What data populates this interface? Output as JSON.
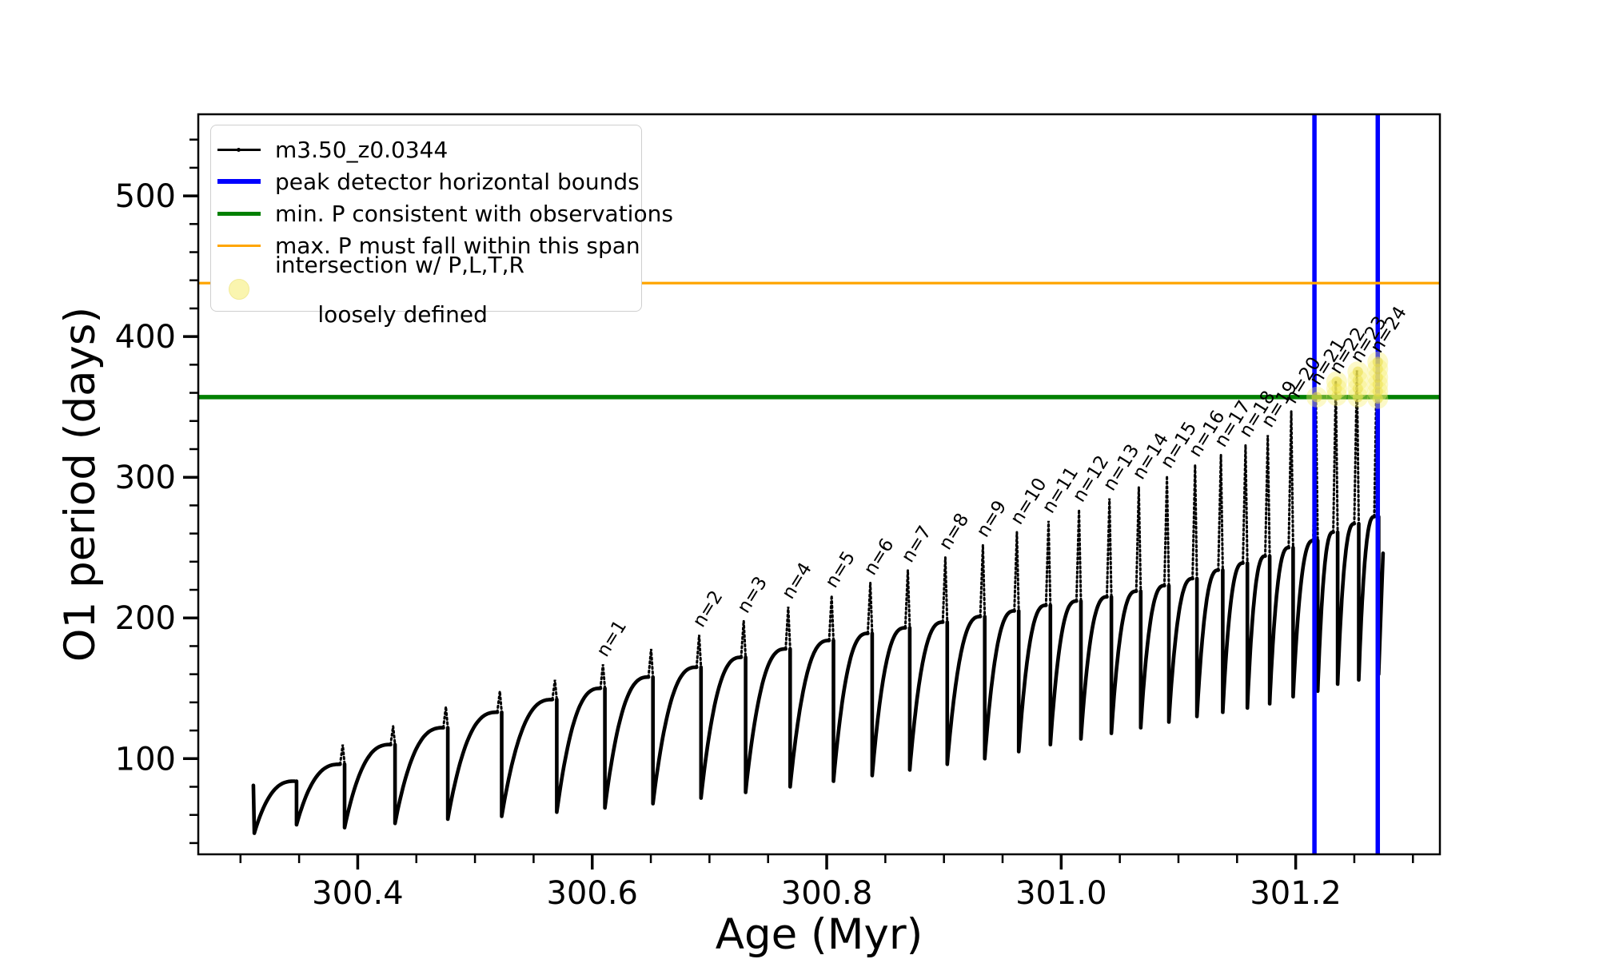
{
  "colors": {
    "series": "#000000",
    "blue": "#0000ff",
    "green": "#008000",
    "orange": "#ffa500",
    "marker_fill": "#f7ee6e",
    "marker_edge": "#e8da45"
  },
  "axes": {
    "x_label": "Age (Myr)",
    "y_label": "O1 period (days)",
    "xlim": [
      300.264,
      301.323
    ],
    "ylim": [
      32,
      558
    ],
    "x_ticks": [
      {
        "v": 300.4,
        "label": "300.4"
      },
      {
        "v": 300.6,
        "label": "300.6"
      },
      {
        "v": 300.8,
        "label": "300.8"
      },
      {
        "v": 301.0,
        "label": "301.0"
      },
      {
        "v": 301.2,
        "label": "301.2"
      }
    ],
    "y_ticks": [
      {
        "v": 100,
        "label": "100"
      },
      {
        "v": 200,
        "label": "200"
      },
      {
        "v": 300,
        "label": "300"
      },
      {
        "v": 400,
        "label": "400"
      },
      {
        "v": 500,
        "label": "500"
      }
    ],
    "x_minor_step": 0.05,
    "y_minor_step": 20
  },
  "legend": {
    "series_label": "m3.50_z0.0344",
    "blue_label": "peak detector horizontal bounds",
    "green_label": "min. P consistent with observations",
    "orange_label": "max. P must fall within this span",
    "intersection_line1": "intersection w/ P,L,T,R",
    "intersection_line2": "loosely defined"
  },
  "chart_data": {
    "type": "line",
    "title": "",
    "xlabel": "Age (Myr)",
    "ylabel": "O1 period (days)",
    "series_name": "m3.50_z0.0344",
    "xlim": [
      300.264,
      301.323
    ],
    "ylim": [
      32,
      558
    ],
    "start": {
      "age": 300.311,
      "value": 81,
      "drop_to": 47
    },
    "cycles": [
      {
        "end": 300.347,
        "shoulder": 84,
        "peak": 84,
        "min_after": 53
      },
      {
        "end": 300.388,
        "shoulder": 96,
        "peak": 110,
        "min_after": 51
      },
      {
        "end": 300.431,
        "shoulder": 110,
        "peak": 123,
        "min_after": 54
      },
      {
        "end": 300.476,
        "shoulder": 122,
        "peak": 137,
        "min_after": 57
      },
      {
        "end": 300.522,
        "shoulder": 133,
        "peak": 148,
        "min_after": 59
      },
      {
        "end": 300.569,
        "shoulder": 142,
        "peak": 156,
        "min_after": 62
      },
      {
        "end": 300.61,
        "shoulder": 150,
        "peak": 167,
        "min_after": 65,
        "label": "n=1"
      },
      {
        "end": 300.651,
        "shoulder": 158,
        "peak": 178,
        "min_after": 68
      },
      {
        "end": 300.692,
        "shoulder": 165,
        "peak": 188,
        "min_after": 72,
        "label": "n=2"
      },
      {
        "end": 300.73,
        "shoulder": 172,
        "peak": 198,
        "min_after": 76,
        "label": "n=3"
      },
      {
        "end": 300.768,
        "shoulder": 178,
        "peak": 208,
        "min_after": 80,
        "label": "n=4"
      },
      {
        "end": 300.805,
        "shoulder": 184,
        "peak": 216,
        "min_after": 84,
        "label": "n=5"
      },
      {
        "end": 300.838,
        "shoulder": 189,
        "peak": 225,
        "min_after": 88,
        "label": "n=6"
      },
      {
        "end": 300.87,
        "shoulder": 193,
        "peak": 234,
        "min_after": 92,
        "label": "n=7"
      },
      {
        "end": 300.902,
        "shoulder": 197,
        "peak": 243,
        "min_after": 96,
        "label": "n=8"
      },
      {
        "end": 300.934,
        "shoulder": 201,
        "peak": 252,
        "min_after": 100,
        "label": "n=9"
      },
      {
        "end": 300.963,
        "shoulder": 205,
        "peak": 261,
        "min_after": 105,
        "label": "n=10"
      },
      {
        "end": 300.99,
        "shoulder": 209,
        "peak": 269,
        "min_after": 110,
        "label": "n=11"
      },
      {
        "end": 301.016,
        "shoulder": 212,
        "peak": 277,
        "min_after": 114,
        "label": "n=12"
      },
      {
        "end": 301.042,
        "shoulder": 215,
        "peak": 285,
        "min_after": 118,
        "label": "n=13"
      },
      {
        "end": 301.067,
        "shoulder": 219,
        "peak": 293,
        "min_after": 122,
        "label": "n=14"
      },
      {
        "end": 301.091,
        "shoulder": 223,
        "peak": 301,
        "min_after": 126,
        "label": "n=15"
      },
      {
        "end": 301.115,
        "shoulder": 228,
        "peak": 309,
        "min_after": 130,
        "label": "n=16"
      },
      {
        "end": 301.137,
        "shoulder": 234,
        "peak": 316,
        "min_after": 133,
        "label": "n=17"
      },
      {
        "end": 301.158,
        "shoulder": 239,
        "peak": 323,
        "min_after": 136,
        "label": "n=18"
      },
      {
        "end": 301.177,
        "shoulder": 244,
        "peak": 330,
        "min_after": 139,
        "label": "n=19"
      },
      {
        "end": 301.197,
        "shoulder": 250,
        "peak": 347,
        "min_after": 144,
        "label": "n=20"
      },
      {
        "end": 301.218,
        "shoulder": 255,
        "peak": 360,
        "min_after": 148,
        "label": "n=21"
      },
      {
        "end": 301.235,
        "shoulder": 261,
        "peak": 368,
        "min_after": 153,
        "label": "n=22"
      },
      {
        "end": 301.253,
        "shoulder": 267,
        "peak": 376,
        "min_after": 156,
        "label": "n=23"
      },
      {
        "end": 301.27,
        "shoulder": 272,
        "peak": 383,
        "min_after": 160,
        "label": "n=24"
      }
    ],
    "tail": {
      "age": 301.2745,
      "value": 246
    },
    "vlines": {
      "name": "peak detector horizontal bounds",
      "ages": [
        301.216,
        301.27
      ]
    },
    "hlines": [
      {
        "name": "min. P consistent with observations",
        "value": 357,
        "color": "green"
      },
      {
        "name": "max. P must fall within this span",
        "value": 438,
        "color": "orange"
      }
    ],
    "intersections": [
      {
        "age": 301.218,
        "values": [
          357
        ]
      },
      {
        "age": 301.235,
        "values": [
          358,
          363,
          368
        ]
      },
      {
        "age": 301.253,
        "values": [
          357,
          363,
          369,
          375
        ]
      },
      {
        "age": 301.27,
        "values": [
          356,
          361,
          366,
          371,
          377,
          382
        ]
      }
    ]
  }
}
